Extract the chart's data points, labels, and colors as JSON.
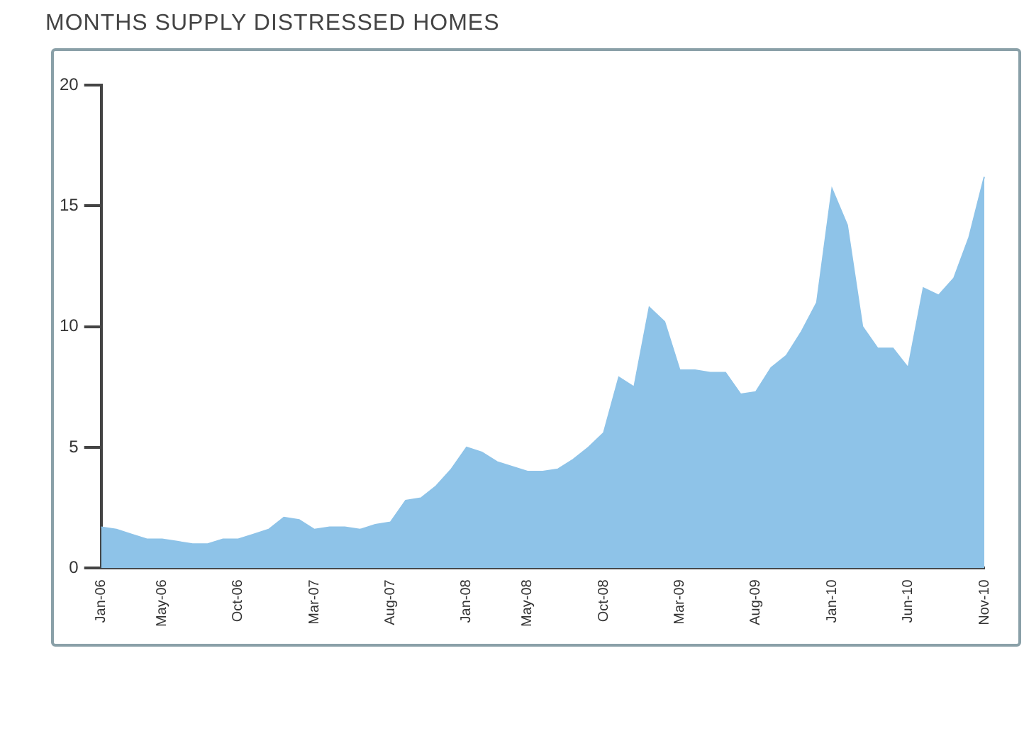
{
  "chart_data": {
    "type": "area",
    "title": "MONTHS SUPPLY DISTRESSED HOMES",
    "categories": [
      "Jan-06",
      null,
      null,
      null,
      "May-06",
      null,
      null,
      null,
      null,
      "Oct-06",
      null,
      null,
      null,
      null,
      "Mar-07",
      null,
      null,
      null,
      null,
      "Aug-07",
      null,
      null,
      null,
      null,
      "Jan-08",
      null,
      null,
      null,
      "May-08",
      null,
      null,
      null,
      null,
      "Oct-08",
      null,
      null,
      null,
      null,
      "Mar-09",
      null,
      null,
      null,
      null,
      "Aug-09",
      null,
      null,
      null,
      null,
      "Jan-10",
      null,
      null,
      null,
      null,
      "Jun-10",
      null,
      null,
      null,
      null,
      "Nov-10"
    ],
    "series": [
      {
        "color": "#8ec3e8",
        "values": [
          1.7,
          1.6,
          1.4,
          1.2,
          1.2,
          1.1,
          1.0,
          1.0,
          1.2,
          1.2,
          1.4,
          1.6,
          2.1,
          2.0,
          1.6,
          1.7,
          1.7,
          1.6,
          1.8,
          1.9,
          2.8,
          2.9,
          3.4,
          4.1,
          5.0,
          4.8,
          4.4,
          4.2,
          4.0,
          4.0,
          4.1,
          4.5,
          5.0,
          5.6,
          7.9,
          7.5,
          10.8,
          10.2,
          8.2,
          8.2,
          8.1,
          8.1,
          7.2,
          7.3,
          8.3,
          8.8,
          9.8,
          11.0,
          15.7,
          14.2,
          10.0,
          9.1,
          9.1,
          8.3,
          11.6,
          11.3,
          12.0,
          13.7,
          16.2
        ]
      }
    ],
    "ylim": [
      0,
      20
    ],
    "yticks": [
      0,
      5,
      10,
      15,
      20
    ],
    "grid": false,
    "legend": false
  }
}
